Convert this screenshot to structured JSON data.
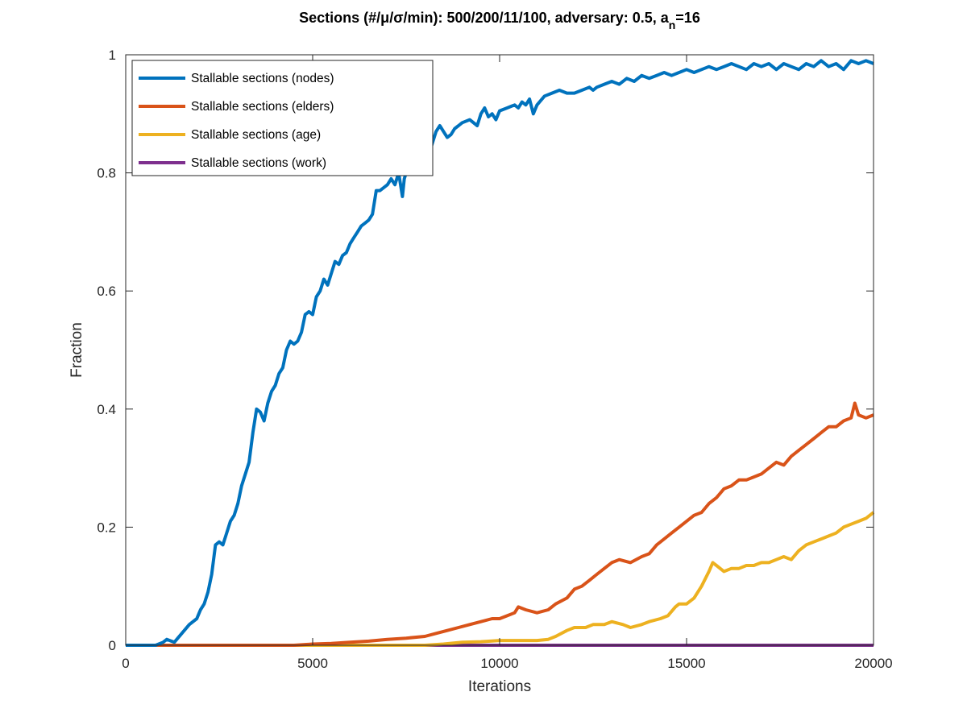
{
  "chart_data": {
    "type": "line",
    "title": "Sections (#/μ/σ/min): 500/200/11/100, adversary: 0.5, a",
    "title_subscript": "n",
    "title_suffix": "=16",
    "xlabel": "Iterations",
    "ylabel": "Fraction",
    "xlim": [
      0,
      20000
    ],
    "ylim": [
      0,
      1
    ],
    "xticks": [
      0,
      5000,
      10000,
      15000,
      20000
    ],
    "xtick_labels": [
      "0",
      "5000",
      "10000",
      "15000",
      "20000"
    ],
    "yticks": [
      0,
      0.2,
      0.4,
      0.6,
      0.8,
      1
    ],
    "ytick_labels": [
      "0",
      "0.2",
      "0.4",
      "0.6",
      "0.8",
      "1"
    ],
    "grid": false,
    "legend_position": "top-left",
    "series": [
      {
        "name": "Stallable sections (nodes)",
        "color": "#0072BD",
        "x": [
          0,
          500,
          800,
          1000,
          1100,
          1300,
          1500,
          1700,
          1900,
          2000,
          2100,
          2200,
          2300,
          2400,
          2500,
          2600,
          2700,
          2800,
          2900,
          3000,
          3100,
          3200,
          3300,
          3400,
          3500,
          3600,
          3700,
          3800,
          3900,
          4000,
          4100,
          4200,
          4300,
          4400,
          4500,
          4600,
          4700,
          4800,
          4900,
          5000,
          5100,
          5200,
          5300,
          5400,
          5500,
          5600,
          5700,
          5800,
          5900,
          6000,
          6100,
          6200,
          6300,
          6400,
          6500,
          6600,
          6700,
          6800,
          6900,
          7000,
          7100,
          7200,
          7300,
          7400,
          7450,
          7500,
          7600,
          7700,
          7800,
          7900,
          8000,
          8100,
          8200,
          8300,
          8400,
          8500,
          8600,
          8700,
          8800,
          8900,
          9000,
          9200,
          9400,
          9500,
          9600,
          9700,
          9800,
          9900,
          10000,
          10200,
          10400,
          10500,
          10600,
          10700,
          10800,
          10900,
          11000,
          11200,
          11400,
          11600,
          11800,
          12000,
          12200,
          12400,
          12500,
          12600,
          12800,
          13000,
          13200,
          13400,
          13600,
          13800,
          14000,
          14200,
          14400,
          14600,
          14800,
          15000,
          15200,
          15400,
          15600,
          15800,
          16000,
          16200,
          16400,
          16600,
          16800,
          17000,
          17200,
          17400,
          17600,
          17800,
          18000,
          18200,
          18400,
          18600,
          18800,
          19000,
          19200,
          19400,
          19600,
          19800,
          20000
        ],
        "values": [
          0,
          0,
          0,
          0.005,
          0.01,
          0.005,
          0.02,
          0.035,
          0.045,
          0.06,
          0.07,
          0.09,
          0.12,
          0.17,
          0.175,
          0.17,
          0.19,
          0.21,
          0.22,
          0.24,
          0.27,
          0.29,
          0.31,
          0.36,
          0.4,
          0.395,
          0.38,
          0.41,
          0.43,
          0.44,
          0.46,
          0.47,
          0.5,
          0.515,
          0.51,
          0.515,
          0.53,
          0.56,
          0.565,
          0.56,
          0.59,
          0.6,
          0.62,
          0.61,
          0.63,
          0.65,
          0.645,
          0.66,
          0.665,
          0.68,
          0.69,
          0.7,
          0.71,
          0.715,
          0.72,
          0.73,
          0.77,
          0.77,
          0.775,
          0.78,
          0.79,
          0.78,
          0.8,
          0.76,
          0.79,
          0.8,
          0.82,
          0.83,
          0.85,
          0.84,
          0.84,
          0.83,
          0.85,
          0.87,
          0.88,
          0.87,
          0.86,
          0.865,
          0.875,
          0.88,
          0.885,
          0.89,
          0.88,
          0.9,
          0.91,
          0.895,
          0.9,
          0.89,
          0.905,
          0.91,
          0.915,
          0.91,
          0.92,
          0.915,
          0.925,
          0.9,
          0.915,
          0.93,
          0.935,
          0.94,
          0.935,
          0.935,
          0.94,
          0.945,
          0.94,
          0.945,
          0.95,
          0.955,
          0.95,
          0.96,
          0.955,
          0.965,
          0.96,
          0.965,
          0.97,
          0.965,
          0.97,
          0.975,
          0.97,
          0.975,
          0.98,
          0.975,
          0.98,
          0.985,
          0.98,
          0.975,
          0.985,
          0.98,
          0.985,
          0.975,
          0.985,
          0.98,
          0.975,
          0.985,
          0.98,
          0.99,
          0.98,
          0.985,
          0.975,
          0.99,
          0.985,
          0.99,
          0.985
        ]
      },
      {
        "name": "Stallable sections (elders)",
        "color": "#D95319",
        "x": [
          0,
          3500,
          4000,
          4500,
          5000,
          5500,
          6000,
          6500,
          7000,
          7500,
          8000,
          8300,
          8600,
          8900,
          9200,
          9500,
          9800,
          10000,
          10200,
          10400,
          10500,
          10700,
          11000,
          11300,
          11500,
          11800,
          12000,
          12200,
          12400,
          12600,
          12800,
          13000,
          13200,
          13500,
          13800,
          14000,
          14200,
          14400,
          14600,
          14800,
          15000,
          15200,
          15400,
          15600,
          15800,
          16000,
          16200,
          16400,
          16600,
          16800,
          17000,
          17200,
          17400,
          17600,
          17800,
          18000,
          18200,
          18400,
          18600,
          18800,
          19000,
          19200,
          19400,
          19500,
          19600,
          19800,
          20000
        ],
        "values": [
          0,
          0,
          0,
          0,
          0.002,
          0.003,
          0.005,
          0.007,
          0.01,
          0.012,
          0.015,
          0.02,
          0.025,
          0.03,
          0.035,
          0.04,
          0.045,
          0.045,
          0.05,
          0.055,
          0.065,
          0.06,
          0.055,
          0.06,
          0.07,
          0.08,
          0.095,
          0.1,
          0.11,
          0.12,
          0.13,
          0.14,
          0.145,
          0.14,
          0.15,
          0.155,
          0.17,
          0.18,
          0.19,
          0.2,
          0.21,
          0.22,
          0.225,
          0.24,
          0.25,
          0.265,
          0.27,
          0.28,
          0.28,
          0.285,
          0.29,
          0.3,
          0.31,
          0.305,
          0.32,
          0.33,
          0.34,
          0.35,
          0.36,
          0.37,
          0.37,
          0.38,
          0.385,
          0.41,
          0.39,
          0.385,
          0.39
        ]
      },
      {
        "name": "Stallable sections (age)",
        "color": "#EDB120",
        "x": [
          0,
          7500,
          8000,
          8500,
          9000,
          9500,
          10000,
          10500,
          11000,
          11300,
          11500,
          11800,
          12000,
          12300,
          12500,
          12800,
          13000,
          13300,
          13500,
          13800,
          14000,
          14300,
          14500,
          14700,
          14800,
          15000,
          15200,
          15400,
          15600,
          15700,
          15800,
          16000,
          16200,
          16400,
          16600,
          16800,
          17000,
          17200,
          17400,
          17600,
          17800,
          18000,
          18200,
          18400,
          18600,
          18800,
          19000,
          19200,
          19400,
          19600,
          19800,
          20000
        ],
        "values": [
          0,
          0,
          0,
          0.002,
          0.005,
          0.006,
          0.008,
          0.008,
          0.008,
          0.01,
          0.015,
          0.025,
          0.03,
          0.03,
          0.035,
          0.035,
          0.04,
          0.035,
          0.03,
          0.035,
          0.04,
          0.045,
          0.05,
          0.065,
          0.07,
          0.07,
          0.08,
          0.1,
          0.125,
          0.14,
          0.135,
          0.125,
          0.13,
          0.13,
          0.135,
          0.135,
          0.14,
          0.14,
          0.145,
          0.15,
          0.145,
          0.16,
          0.17,
          0.175,
          0.18,
          0.185,
          0.19,
          0.2,
          0.205,
          0.21,
          0.215,
          0.225
        ]
      },
      {
        "name": "Stallable sections (work)",
        "color": "#7E2F8E",
        "x": [
          0,
          20000
        ],
        "values": [
          0,
          0
        ]
      }
    ]
  }
}
